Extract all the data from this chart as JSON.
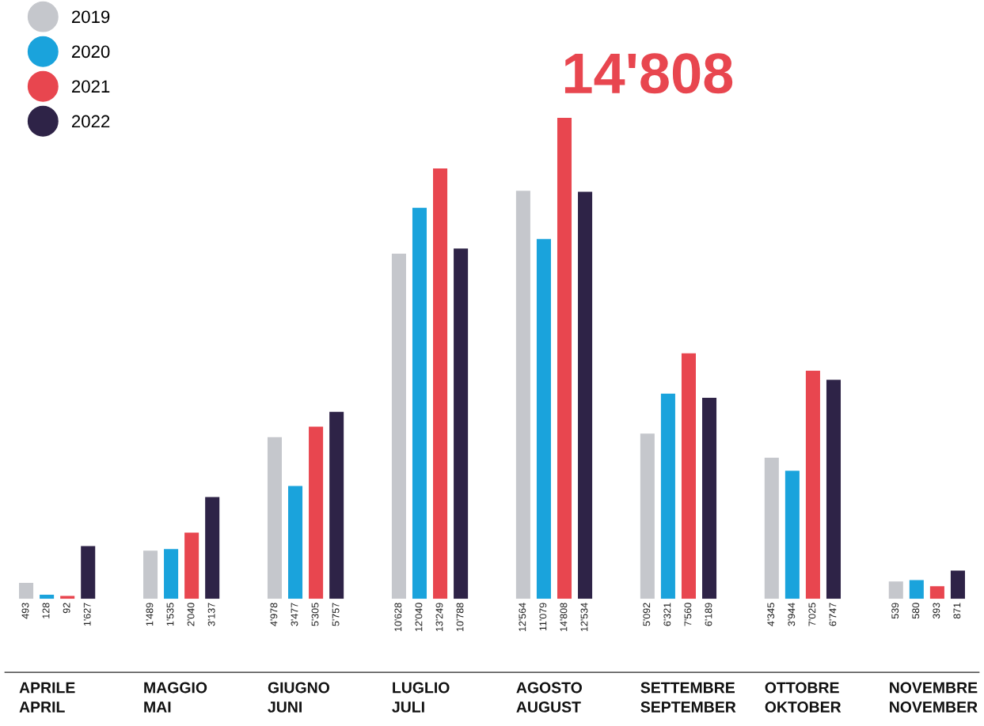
{
  "chart_data": {
    "type": "bar",
    "categories": [
      "APRILE\nAPRIL",
      "MAGGIO\nMAI",
      "GIUGNO\nJUNI",
      "LUGLIO\nJULI",
      "AGOSTO\nAUGUST",
      "SETTEMBRE\nSEPTEMBER",
      "OTTOBRE\nOKTOBER",
      "NOVEMBRE\nNOVEMBER"
    ],
    "series": [
      {
        "name": "2019",
        "color": "#c5c7cc",
        "values": [
          493,
          1489,
          4978,
          10628,
          12564,
          5092,
          4345,
          539
        ],
        "value_labels": [
          "493",
          "1'489",
          "4'978",
          "10'628",
          "12'564",
          "5'092",
          "4'345",
          "539"
        ]
      },
      {
        "name": "2020",
        "color": "#1aa3dc",
        "values": [
          128,
          1535,
          3477,
          12040,
          11079,
          6321,
          3944,
          580
        ],
        "value_labels": [
          "128",
          "1'535",
          "3'477",
          "12'040",
          "11'079",
          "6'321",
          "3'944",
          "580"
        ]
      },
      {
        "name": "2021",
        "color": "#e8464f",
        "values": [
          92,
          2040,
          5305,
          13249,
          14808,
          7560,
          7025,
          393
        ],
        "value_labels": [
          "92",
          "2'040",
          "5'305",
          "13'249",
          "14'808",
          "7'560",
          "7'025",
          "393"
        ]
      },
      {
        "name": "2022",
        "color": "#2e2347",
        "values": [
          1627,
          3137,
          5757,
          10788,
          12534,
          6189,
          6747,
          871
        ],
        "value_labels": [
          "1'627",
          "3'137",
          "5'757",
          "10'788",
          "12'534",
          "6'189",
          "6'747",
          "871"
        ]
      }
    ],
    "annotations": [
      "14'808"
    ],
    "legend": "top left"
  }
}
